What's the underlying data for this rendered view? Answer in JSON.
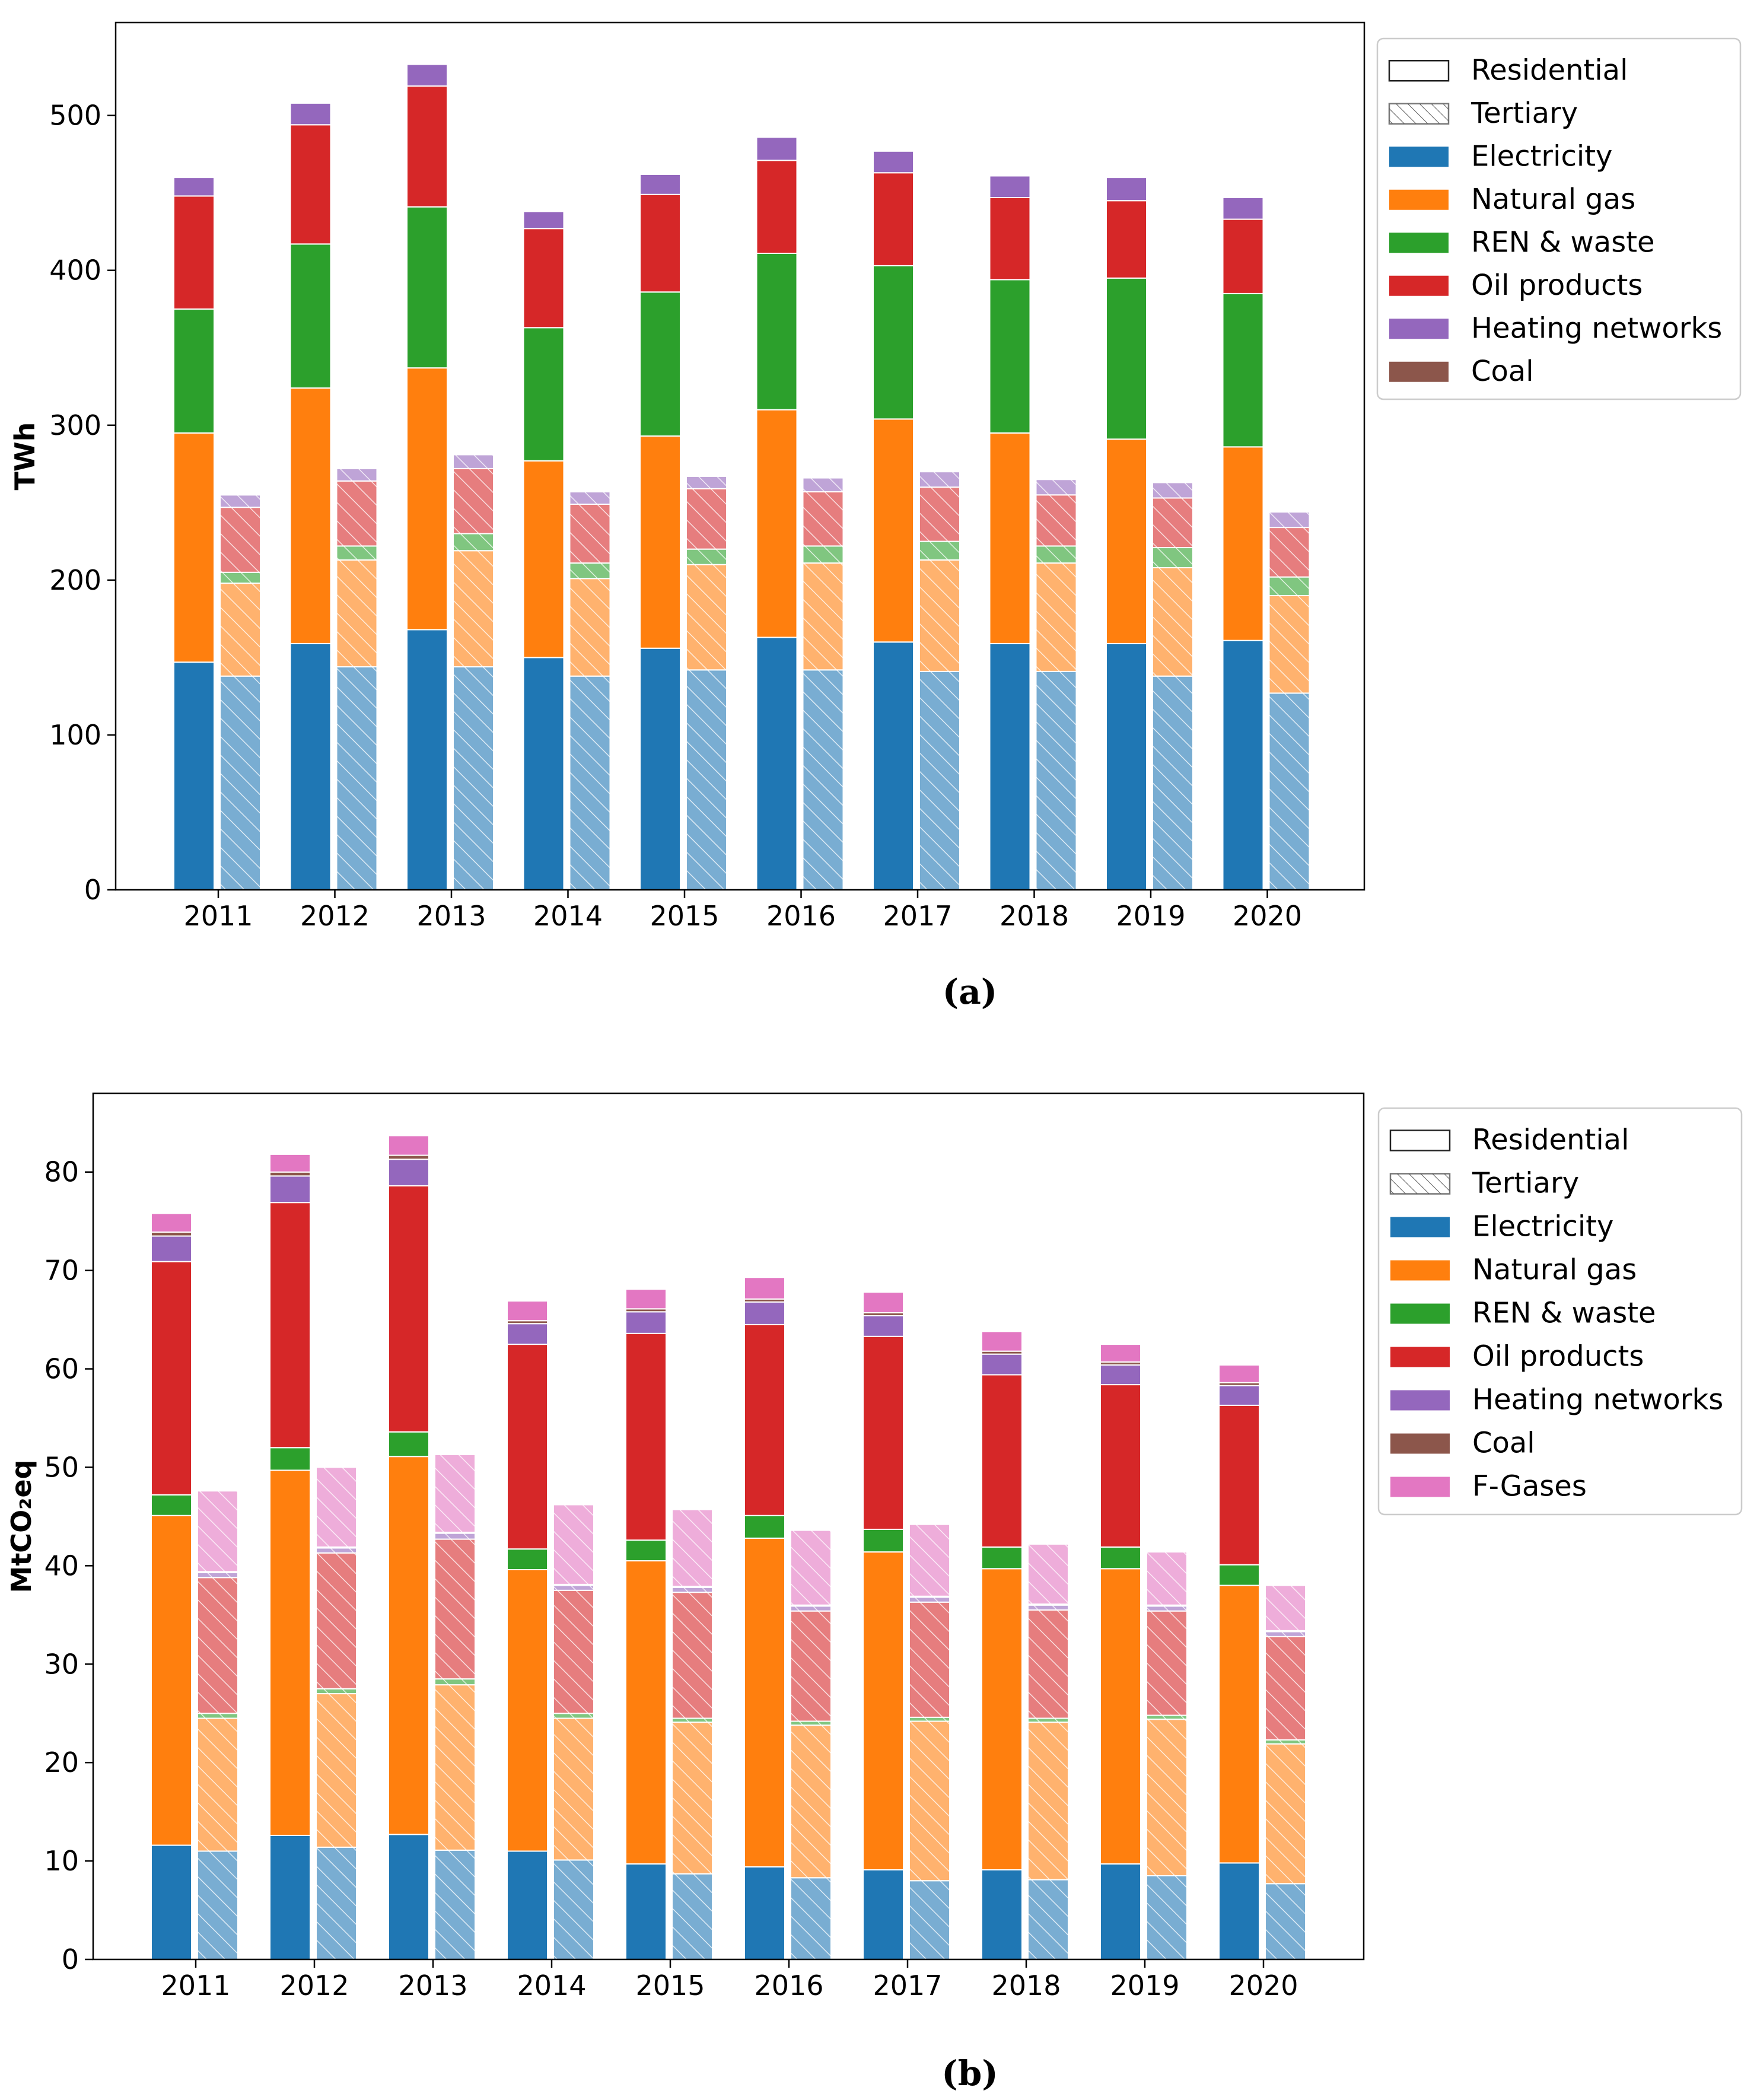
{
  "colors": {
    "electricity": "#1f77b4",
    "natural_gas": "#ff7f0e",
    "ren_waste": "#2ca02c",
    "oil_products": "#d62728",
    "heating_networks": "#9467bd",
    "coal": "#8c564b",
    "f_gases": "#e377c2"
  },
  "chart_data": [
    {
      "type": "bar",
      "stacked": true,
      "caption": "(a)",
      "title": "",
      "xlabel": "",
      "ylabel": "TWh",
      "ylim": [
        0,
        560
      ],
      "yticks": [
        0,
        100,
        200,
        300,
        400,
        500
      ],
      "categories": [
        "2011",
        "2012",
        "2013",
        "2014",
        "2015",
        "2016",
        "2017",
        "2018",
        "2019",
        "2020"
      ],
      "legend_position": "outside-right-top",
      "legend": [
        {
          "label": "Residential",
          "key": "residential"
        },
        {
          "label": "Tertiary",
          "key": "tertiary"
        },
        {
          "label": "Electricity",
          "key": "electricity"
        },
        {
          "label": "Natural gas",
          "key": "natural_gas"
        },
        {
          "label": "REN & waste",
          "key": "ren_waste"
        },
        {
          "label": "Oil products",
          "key": "oil_products"
        },
        {
          "label": "Heating networks",
          "key": "heating_networks"
        },
        {
          "label": "Coal",
          "key": "coal"
        }
      ],
      "groups": [
        {
          "name": "Residential",
          "hatched": false,
          "series": [
            {
              "name": "Electricity",
              "key": "electricity",
              "values": [
                147,
                159,
                168,
                150,
                156,
                163,
                160,
                159,
                159,
                161
              ]
            },
            {
              "name": "Natural gas",
              "key": "natural_gas",
              "values": [
                148,
                165,
                169,
                127,
                137,
                147,
                144,
                136,
                132,
                125
              ]
            },
            {
              "name": "REN & waste",
              "key": "ren_waste",
              "values": [
                80,
                93,
                104,
                86,
                93,
                101,
                99,
                99,
                104,
                99
              ]
            },
            {
              "name": "Oil products",
              "key": "oil_products",
              "values": [
                73,
                77,
                78,
                64,
                63,
                60,
                60,
                53,
                50,
                48
              ]
            },
            {
              "name": "Heating networks",
              "key": "heating_networks",
              "values": [
                12,
                14,
                14,
                11,
                13,
                15,
                14,
                14,
                15,
                14
              ]
            },
            {
              "name": "Coal",
              "key": "coal",
              "values": [
                0.5,
                0.5,
                0.5,
                0.5,
                0.5,
                0.5,
                0.5,
                0.5,
                0.5,
                0.5
              ]
            }
          ]
        },
        {
          "name": "Tertiary",
          "hatched": true,
          "series": [
            {
              "name": "Electricity",
              "key": "electricity",
              "values": [
                138,
                144,
                144,
                138,
                142,
                142,
                141,
                141,
                138,
                127
              ]
            },
            {
              "name": "Natural gas",
              "key": "natural_gas",
              "values": [
                60,
                69,
                75,
                63,
                68,
                69,
                72,
                70,
                70,
                63
              ]
            },
            {
              "name": "REN & waste",
              "key": "ren_waste",
              "values": [
                7,
                9,
                11,
                10,
                10,
                11,
                12,
                11,
                13,
                12
              ]
            },
            {
              "name": "Oil products",
              "key": "oil_products",
              "values": [
                42,
                42,
                42,
                38,
                39,
                35,
                35,
                33,
                32,
                32
              ]
            },
            {
              "name": "Heating networks",
              "key": "heating_networks",
              "values": [
                8,
                8,
                9,
                8,
                8,
                9,
                10,
                10,
                10,
                10
              ]
            },
            {
              "name": "Coal",
              "key": "coal",
              "values": [
                0.5,
                0.5,
                0.5,
                0.5,
                0.5,
                0.5,
                0.5,
                0.5,
                0.5,
                0.5
              ]
            }
          ]
        }
      ]
    },
    {
      "type": "bar",
      "stacked": true,
      "caption": "(b)",
      "title": "",
      "xlabel": "",
      "ylabel": "MtCO₂eq",
      "ylim": [
        0,
        88
      ],
      "yticks": [
        0,
        10,
        20,
        30,
        40,
        50,
        60,
        70,
        80
      ],
      "categories": [
        "2011",
        "2012",
        "2013",
        "2014",
        "2015",
        "2016",
        "2017",
        "2018",
        "2019",
        "2020"
      ],
      "legend_position": "outside-right-top",
      "legend": [
        {
          "label": "Residential",
          "key": "residential"
        },
        {
          "label": "Tertiary",
          "key": "tertiary"
        },
        {
          "label": "Electricity",
          "key": "electricity"
        },
        {
          "label": "Natural gas",
          "key": "natural_gas"
        },
        {
          "label": "REN & waste",
          "key": "ren_waste"
        },
        {
          "label": "Oil products",
          "key": "oil_products"
        },
        {
          "label": "Heating networks",
          "key": "heating_networks"
        },
        {
          "label": "Coal",
          "key": "coal"
        },
        {
          "label": "F-Gases",
          "key": "f_gases"
        }
      ],
      "groups": [
        {
          "name": "Residential",
          "hatched": false,
          "series": [
            {
              "name": "Electricity",
              "key": "electricity",
              "values": [
                11.6,
                12.6,
                12.7,
                11.0,
                9.7,
                9.4,
                9.1,
                9.1,
                9.7,
                9.8
              ]
            },
            {
              "name": "Natural gas",
              "key": "natural_gas",
              "values": [
                33.5,
                37.1,
                38.4,
                28.6,
                30.8,
                33.4,
                32.3,
                30.6,
                30.0,
                28.2
              ]
            },
            {
              "name": "REN & waste",
              "key": "ren_waste",
              "values": [
                2.1,
                2.3,
                2.5,
                2.1,
                2.1,
                2.3,
                2.3,
                2.2,
                2.2,
                2.1
              ]
            },
            {
              "name": "Oil products",
              "key": "oil_products",
              "values": [
                23.7,
                24.9,
                25.0,
                20.8,
                21.0,
                19.4,
                19.6,
                17.5,
                16.5,
                16.2
              ]
            },
            {
              "name": "Heating networks",
              "key": "heating_networks",
              "values": [
                2.6,
                2.7,
                2.7,
                2.1,
                2.2,
                2.3,
                2.1,
                2.1,
                2.0,
                2.0
              ]
            },
            {
              "name": "Coal",
              "key": "coal",
              "values": [
                0.4,
                0.4,
                0.4,
                0.3,
                0.3,
                0.3,
                0.3,
                0.3,
                0.3,
                0.3
              ]
            },
            {
              "name": "F-Gases",
              "key": "f_gases",
              "values": [
                1.9,
                1.8,
                2.0,
                2.0,
                2.0,
                2.2,
                2.1,
                2.0,
                1.8,
                1.8
              ]
            }
          ]
        },
        {
          "name": "Tertiary",
          "hatched": true,
          "series": [
            {
              "name": "Electricity",
              "key": "electricity",
              "values": [
                11.0,
                11.4,
                11.1,
                10.1,
                8.7,
                8.3,
                8.0,
                8.1,
                8.5,
                7.7
              ]
            },
            {
              "name": "Natural gas",
              "key": "natural_gas",
              "values": [
                13.5,
                15.6,
                16.8,
                14.4,
                15.4,
                15.5,
                16.2,
                16.0,
                15.9,
                14.2
              ]
            },
            {
              "name": "REN & waste",
              "key": "ren_waste",
              "values": [
                0.5,
                0.5,
                0.6,
                0.5,
                0.4,
                0.4,
                0.4,
                0.4,
                0.4,
                0.4
              ]
            },
            {
              "name": "Oil products",
              "key": "oil_products",
              "values": [
                13.8,
                13.8,
                14.2,
                12.5,
                12.8,
                11.2,
                11.7,
                11.0,
                10.6,
                10.5
              ]
            },
            {
              "name": "Heating networks",
              "key": "heating_networks",
              "values": [
                0.5,
                0.5,
                0.6,
                0.5,
                0.5,
                0.5,
                0.5,
                0.5,
                0.5,
                0.5
              ]
            },
            {
              "name": "Coal",
              "key": "coal",
              "values": [
                0.1,
                0.1,
                0.1,
                0.1,
                0.1,
                0.1,
                0.1,
                0.1,
                0.1,
                0.1
              ]
            },
            {
              "name": "F-Gases",
              "key": "f_gases",
              "values": [
                8.2,
                8.1,
                7.9,
                8.1,
                7.8,
                7.6,
                7.3,
                6.1,
                5.4,
                4.6
              ]
            }
          ]
        }
      ]
    }
  ]
}
